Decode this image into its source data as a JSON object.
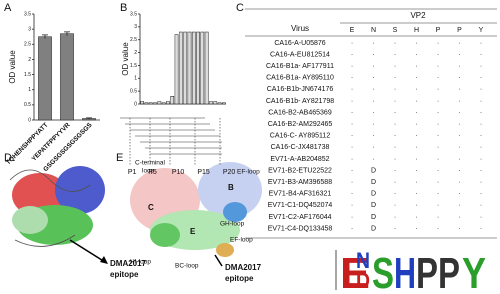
{
  "panel_labels": [
    "A",
    "B",
    "C",
    "D",
    "E"
  ],
  "chart_data": [
    {
      "type": "bar",
      "ylabel": "OD value",
      "categories": [
        "TQHENSHPPYATT",
        "YEPATFPPYYVR",
        "GSGSGSGSGSGSGS"
      ],
      "values": [
        2.75,
        2.85,
        0.05
      ],
      "errors": [
        0.06,
        0.06,
        0.02
      ],
      "color": "#808080",
      "ylim": [
        0,
        3.5
      ],
      "yticks": [
        0,
        0.5,
        1,
        1.5,
        2,
        2.5,
        3,
        3.5
      ]
    },
    {
      "type": "bar",
      "ylabel": "OD value",
      "categories": [
        "P1",
        null,
        null,
        null,
        "P5",
        null,
        null,
        null,
        null,
        "P10",
        null,
        null,
        null,
        null,
        "P15",
        null,
        null,
        null,
        null,
        "P20"
      ],
      "values": [
        0.1,
        0.05,
        0.05,
        0.05,
        0.1,
        0.05,
        0.1,
        0.3,
        2.7,
        2.8,
        2.8,
        2.8,
        2.8,
        2.8,
        2.8,
        2.8,
        0.1,
        0.1,
        0.05,
        0.05
      ],
      "color": "#ffffff",
      "ylim": [
        0,
        3.5
      ],
      "yticks": [
        0,
        0.5,
        1,
        1.5,
        2,
        2.5,
        3,
        3.5
      ]
    }
  ],
  "table": {
    "virus_header": "Virus",
    "group_header": "VP2",
    "columns": [
      "E",
      "N",
      "S",
      "H",
      "P",
      "P",
      "Y"
    ],
    "rows": [
      {
        "virus": "CA16-A-U05876",
        "cells": [
          "·",
          "·",
          "·",
          "·",
          "·",
          "·",
          "·"
        ]
      },
      {
        "virus": "CA16-A-EU812514",
        "cells": [
          "·",
          "·",
          "·",
          "·",
          "·",
          "·",
          "·"
        ]
      },
      {
        "virus": "CA16-B1a- AF177911",
        "cells": [
          "·",
          "·",
          "·",
          "·",
          "·",
          "·",
          "·"
        ]
      },
      {
        "virus": "CA16-B1a- AY895110",
        "cells": [
          "·",
          "·",
          "·",
          "·",
          "·",
          "·",
          "·"
        ]
      },
      {
        "virus": "CA16-B1b-JN674176",
        "cells": [
          "·",
          "·",
          "·",
          "·",
          "·",
          "·",
          "·"
        ]
      },
      {
        "virus": "CA16-B1b- AY821798",
        "cells": [
          "·",
          "·",
          "·",
          "·",
          "·",
          "·",
          "·"
        ]
      },
      {
        "virus": "CA16-B2-AB465369",
        "cells": [
          "·",
          "·",
          "·",
          "·",
          "·",
          "·",
          "·"
        ]
      },
      {
        "virus": "CA16-B2-AM292465",
        "cells": [
          "·",
          "·",
          "·",
          "·",
          "·",
          "·",
          "·"
        ]
      },
      {
        "virus": "CA16-C- AY895112",
        "cells": [
          "·",
          "·",
          "·",
          "·",
          "·",
          "·",
          "·"
        ]
      },
      {
        "virus": "CA16-C-JX481738",
        "cells": [
          "·",
          "·",
          "·",
          "·",
          "·",
          "·",
          "·"
        ]
      },
      {
        "virus": "EV71-A-AB204852",
        "cells": [
          "·",
          "·",
          "·",
          "·",
          "·",
          "·",
          "·"
        ]
      },
      {
        "virus": "EV71-B2-ETU22522",
        "cells": [
          "·",
          "D",
          "·",
          "·",
          "·",
          "·",
          "·"
        ]
      },
      {
        "virus": "EV71-B3-AM396588",
        "cells": [
          "·",
          "D",
          "·",
          "·",
          "·",
          "·",
          "·"
        ]
      },
      {
        "virus": "EV71-B4-AF316321",
        "cells": [
          "·",
          "D",
          "·",
          "·",
          "·",
          "·",
          "·"
        ]
      },
      {
        "virus": "EV71-C1-DQ452074",
        "cells": [
          "·",
          "D",
          "·",
          "·",
          "·",
          "·",
          "·"
        ]
      },
      {
        "virus": "EV71-C2-AF176044",
        "cells": [
          "·",
          "D",
          "·",
          "·",
          "·",
          "·",
          "·"
        ]
      },
      {
        "virus": "EV71-C4-DQ133458",
        "cells": [
          "·",
          "D",
          "·",
          "·",
          "·",
          "·",
          "·"
        ]
      }
    ]
  },
  "structure_labels": {
    "d_epitope": [
      "DMA2017",
      "epitope"
    ],
    "e_loops": [
      "C-terminal",
      "loop",
      "EF-loop",
      "GH-loop",
      "HI-loop",
      "BC-loop",
      "EF-loop"
    ],
    "e_chains": [
      "C",
      "B",
      "E"
    ],
    "e_epitope": [
      "DMA2017",
      "epitope"
    ]
  },
  "logo": {
    "letters": [
      {
        "text": "E",
        "color": "#c81e1e"
      },
      {
        "text": "D",
        "color": "#c81e1e"
      },
      {
        "text": "N",
        "color": "#1f3fbf"
      },
      {
        "text": "S",
        "color": "#2a9d2a"
      },
      {
        "text": "H",
        "color": "#1f3fbf"
      },
      {
        "text": "P",
        "color": "#333333"
      },
      {
        "text": "P",
        "color": "#333333"
      },
      {
        "text": "Y",
        "color": "#2a9d2a"
      }
    ]
  }
}
